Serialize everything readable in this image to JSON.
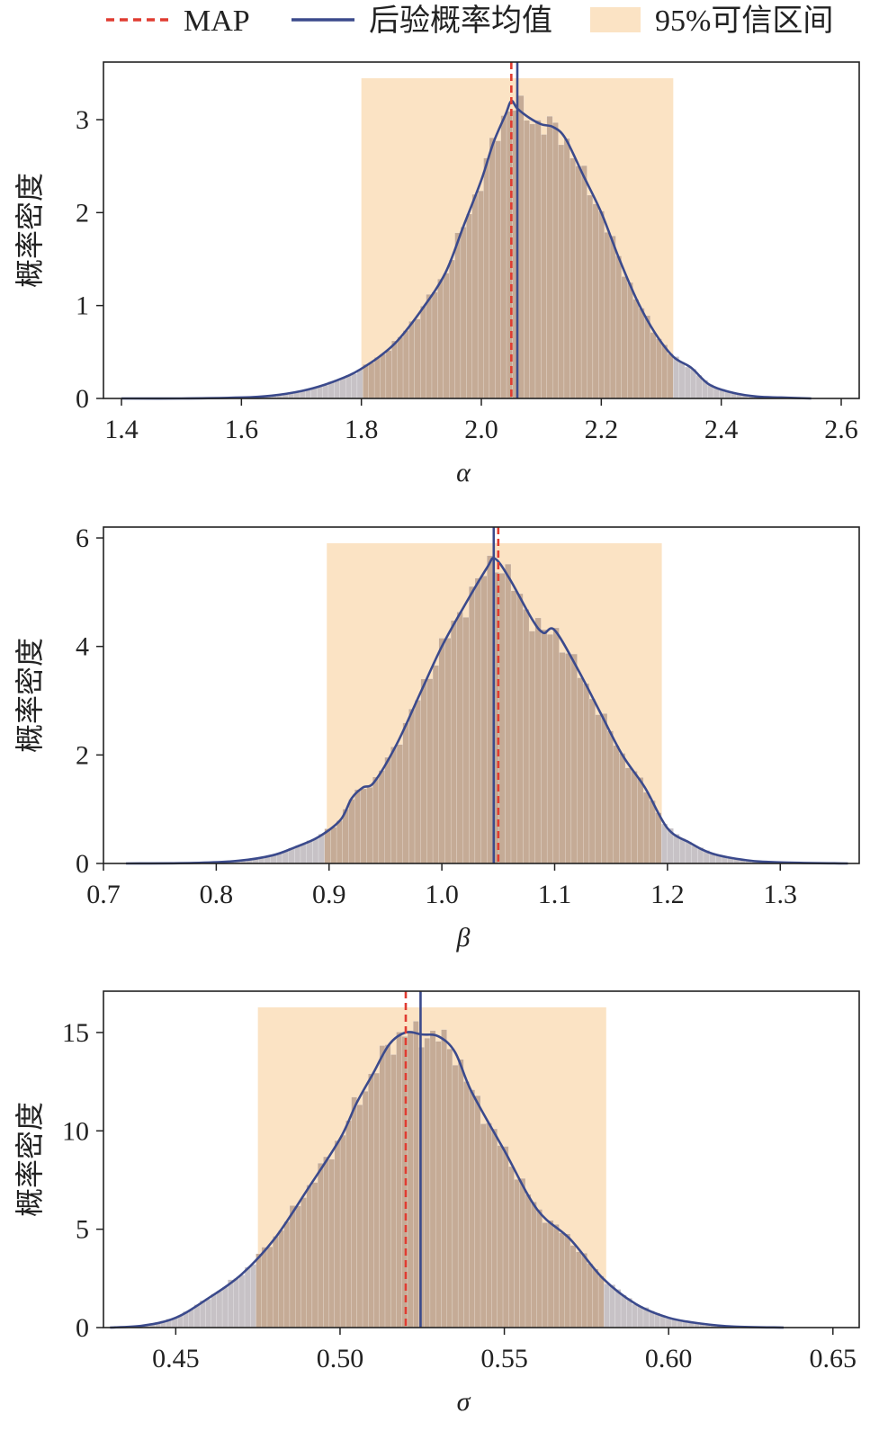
{
  "legend": [
    {
      "id": "map",
      "label": "MAP",
      "style": "dashed",
      "color": "#e03c31"
    },
    {
      "id": "mean",
      "label": "后验概率均值",
      "style": "solid",
      "color": "#3b4a8c"
    },
    {
      "id": "ci",
      "label": "95%可信区间",
      "style": "patch",
      "color": "#fbe3c4"
    }
  ],
  "colors": {
    "hist": "#c5ab96",
    "hist_tail": "#c7c2c6",
    "kde": "#3b4a8c",
    "map": "#e03c31",
    "mean": "#3b4a8c",
    "ci": "#fbe3c4"
  },
  "chart_data": [
    {
      "type": "area",
      "param_label": "α",
      "ylabel": "概率密度",
      "xlim": [
        1.37,
        2.63
      ],
      "ylim": [
        0,
        3.62
      ],
      "xticks": [
        "1.4",
        "1.6",
        "1.8",
        "2.0",
        "2.2",
        "2.4",
        "2.6"
      ],
      "xtick_values": [
        1.4,
        1.6,
        1.8,
        2.0,
        2.2,
        2.4,
        2.6
      ],
      "yticks": [
        "0",
        "1",
        "2",
        "3"
      ],
      "ytick_values": [
        0,
        1,
        2,
        3
      ],
      "ci": [
        1.8,
        2.32
      ],
      "map": 2.05,
      "mean": 2.06,
      "kde": [
        [
          1.4,
          0
        ],
        [
          1.5,
          0
        ],
        [
          1.6,
          0.01
        ],
        [
          1.65,
          0.03
        ],
        [
          1.7,
          0.08
        ],
        [
          1.74,
          0.15
        ],
        [
          1.78,
          0.25
        ],
        [
          1.8,
          0.32
        ],
        [
          1.83,
          0.45
        ],
        [
          1.86,
          0.62
        ],
        [
          1.9,
          0.95
        ],
        [
          1.94,
          1.35
        ],
        [
          1.97,
          1.85
        ],
        [
          2.0,
          2.35
        ],
        [
          2.02,
          2.75
        ],
        [
          2.04,
          3.05
        ],
        [
          2.05,
          3.2
        ],
        [
          2.06,
          3.12
        ],
        [
          2.08,
          3.02
        ],
        [
          2.1,
          2.95
        ],
        [
          2.12,
          2.92
        ],
        [
          2.14,
          2.8
        ],
        [
          2.17,
          2.4
        ],
        [
          2.2,
          2.0
        ],
        [
          2.23,
          1.5
        ],
        [
          2.26,
          1.05
        ],
        [
          2.29,
          0.7
        ],
        [
          2.32,
          0.45
        ],
        [
          2.35,
          0.33
        ],
        [
          2.38,
          0.15
        ],
        [
          2.42,
          0.06
        ],
        [
          2.46,
          0.02
        ],
        [
          2.5,
          0.01
        ],
        [
          2.55,
          0
        ]
      ]
    },
    {
      "type": "area",
      "param_label": "β",
      "ylabel": "概率密度",
      "xlim": [
        0.7,
        1.37
      ],
      "ylim": [
        0,
        6.2
      ],
      "xticks": [
        "0.7",
        "0.8",
        "0.9",
        "1.0",
        "1.1",
        "1.2",
        "1.3"
      ],
      "xtick_values": [
        0.7,
        0.8,
        0.9,
        1.0,
        1.1,
        1.2,
        1.3
      ],
      "yticks": [
        "0",
        "2",
        "4",
        "6"
      ],
      "ytick_values": [
        0,
        2,
        4,
        6
      ],
      "ci": [
        0.898,
        1.195
      ],
      "map": 1.05,
      "mean": 1.046,
      "kde": [
        [
          0.72,
          0
        ],
        [
          0.78,
          0.01
        ],
        [
          0.82,
          0.05
        ],
        [
          0.85,
          0.15
        ],
        [
          0.87,
          0.3
        ],
        [
          0.89,
          0.48
        ],
        [
          0.91,
          0.8
        ],
        [
          0.92,
          1.2
        ],
        [
          0.93,
          1.4
        ],
        [
          0.94,
          1.5
        ],
        [
          0.96,
          2.2
        ],
        [
          0.98,
          3.1
        ],
        [
          1.0,
          4.0
        ],
        [
          1.02,
          4.75
        ],
        [
          1.04,
          5.45
        ],
        [
          1.047,
          5.62
        ],
        [
          1.06,
          5.25
        ],
        [
          1.08,
          4.5
        ],
        [
          1.09,
          4.25
        ],
        [
          1.1,
          4.3
        ],
        [
          1.12,
          3.6
        ],
        [
          1.14,
          2.8
        ],
        [
          1.16,
          2.0
        ],
        [
          1.18,
          1.4
        ],
        [
          1.2,
          0.65
        ],
        [
          1.22,
          0.38
        ],
        [
          1.24,
          0.18
        ],
        [
          1.27,
          0.06
        ],
        [
          1.3,
          0.02
        ],
        [
          1.36,
          0
        ]
      ]
    },
    {
      "type": "area",
      "param_label": "σ",
      "ylabel": "概率密度",
      "xlim": [
        0.428,
        0.658
      ],
      "ylim": [
        0,
        17.1
      ],
      "xticks": [
        "0.45",
        "0.50",
        "0.55",
        "0.60",
        "0.65"
      ],
      "xtick_values": [
        0.45,
        0.5,
        0.55,
        0.6,
        0.65
      ],
      "yticks": [
        "0",
        "5",
        "10",
        "15"
      ],
      "ytick_values": [
        0,
        5,
        10,
        15
      ],
      "ci": [
        0.475,
        0.581
      ],
      "map": 0.52,
      "mean": 0.5245,
      "kde": [
        [
          0.43,
          0
        ],
        [
          0.44,
          0.1
        ],
        [
          0.45,
          0.5
        ],
        [
          0.46,
          1.5
        ],
        [
          0.47,
          2.7
        ],
        [
          0.48,
          4.5
        ],
        [
          0.49,
          7.0
        ],
        [
          0.5,
          9.6
        ],
        [
          0.505,
          11.4
        ],
        [
          0.51,
          12.9
        ],
        [
          0.515,
          14.4
        ],
        [
          0.52,
          15.0
        ],
        [
          0.525,
          14.9
        ],
        [
          0.53,
          14.8
        ],
        [
          0.535,
          14.0
        ],
        [
          0.54,
          12.0
        ],
        [
          0.55,
          9.0
        ],
        [
          0.56,
          6.0
        ],
        [
          0.57,
          4.5
        ],
        [
          0.58,
          2.5
        ],
        [
          0.59,
          1.2
        ],
        [
          0.6,
          0.5
        ],
        [
          0.61,
          0.2
        ],
        [
          0.62,
          0.05
        ],
        [
          0.635,
          0
        ]
      ]
    }
  ]
}
